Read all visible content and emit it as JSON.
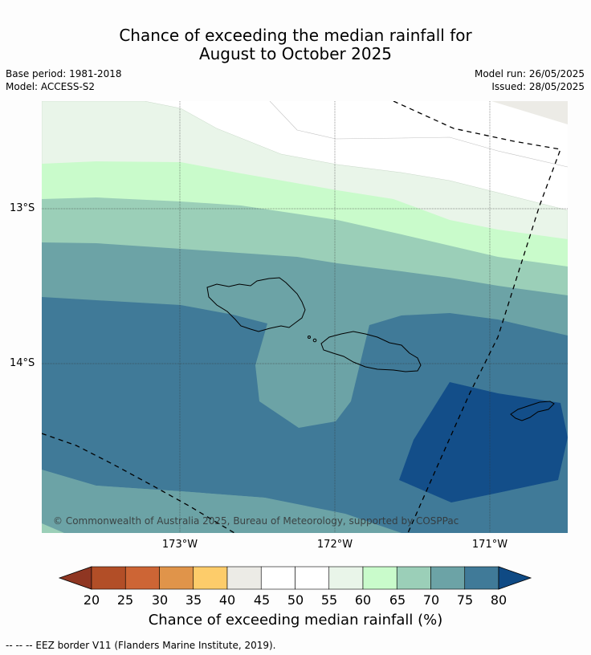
{
  "title_line1": "Chance of exceeding the median rainfall for",
  "title_line2": "August to October 2025",
  "meta": {
    "base_period": "Base period: 1981-2018",
    "model": "Model: ACCESS-S2",
    "model_run": "Model run: 26/05/2025",
    "issued": "Issued: 28/05/2025"
  },
  "axes": {
    "lat_labels": [
      "13°S",
      "14°S"
    ],
    "lon_labels": [
      "173°W",
      "172°W",
      "171°W"
    ]
  },
  "copyright": "© Commonwealth of Australia 2025, Bureau of Meteorology, supported by COSPPac",
  "colorbar": {
    "ticks": [
      "20",
      "25",
      "30",
      "35",
      "40",
      "45",
      "50",
      "55",
      "60",
      "65",
      "70",
      "75",
      "80"
    ],
    "label": "Chance of exceeding median rainfall (%)",
    "under_color": "#8f3622",
    "over_color": "#0f4a84",
    "colors": [
      "#b24e27",
      "#cd6535",
      "#e0944a",
      "#fdcc6a",
      "#ecebe6",
      "#ffffff",
      "#ffffff",
      "#e9f5e9",
      "#c9fbcb",
      "#9bcfb8",
      "#6ca3a6",
      "#407a98"
    ]
  },
  "footnote": "--  --  -- EEZ border V11 (Flanders Marine Institute, 2019)."
}
